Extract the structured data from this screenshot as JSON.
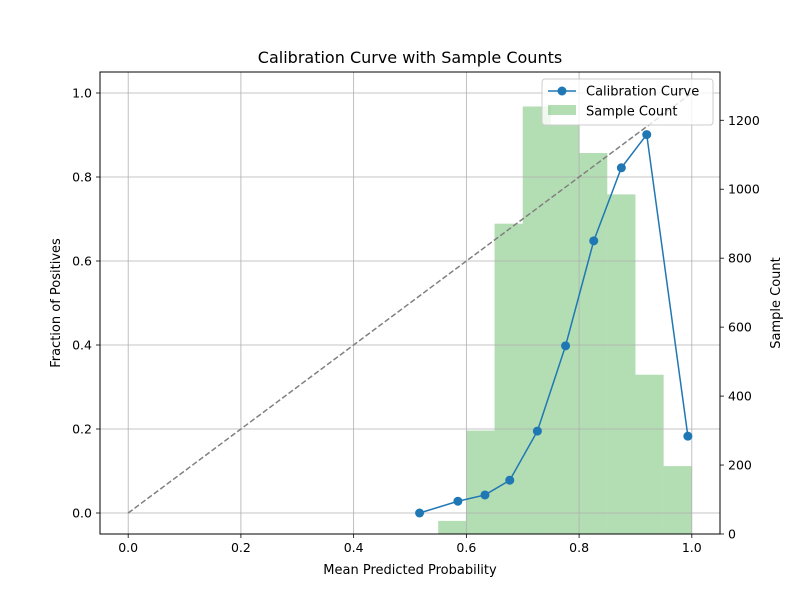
{
  "chart_data": {
    "type": "line",
    "title": "Calibration Curve with Sample Counts",
    "xlabel": "Mean Predicted Probability",
    "ylabel": "Fraction of Positives",
    "y2label": "Sample Count",
    "xlim": [
      -0.05,
      1.05
    ],
    "ylim": [
      -0.05,
      1.05
    ],
    "y2lim": [
      0,
      1340
    ],
    "xticks": [
      0.0,
      0.2,
      0.4,
      0.6,
      0.8,
      1.0
    ],
    "xtick_labels": [
      "0.0",
      "0.2",
      "0.4",
      "0.6",
      "0.8",
      "1.0"
    ],
    "yticks": [
      0.0,
      0.2,
      0.4,
      0.6,
      0.8,
      1.0
    ],
    "ytick_labels": [
      "0.0",
      "0.2",
      "0.4",
      "0.6",
      "0.8",
      "1.0"
    ],
    "y2ticks": [
      0,
      200,
      400,
      600,
      800,
      1000,
      1200
    ],
    "y2tick_labels": [
      "0",
      "200",
      "400",
      "600",
      "800",
      "1000",
      "1200"
    ],
    "grid": true,
    "legend_position": "top-right",
    "reference_line": {
      "x": [
        0.0,
        1.0
      ],
      "y": [
        0.0,
        1.0
      ],
      "style": "dashed",
      "color": "#808080"
    },
    "calibration": {
      "name": "Calibration Curve",
      "color": "#1f77b4",
      "x": [
        0.517,
        0.585,
        0.633,
        0.677,
        0.726,
        0.776,
        0.826,
        0.875,
        0.92,
        0.993
      ],
      "y": [
        0.0,
        0.028,
        0.043,
        0.078,
        0.195,
        0.398,
        0.648,
        0.822,
        0.901,
        0.183
      ]
    },
    "histogram": {
      "name": "Sample Count",
      "color": "#2ca02c",
      "alpha": 0.36,
      "bin_edges": [
        0.55,
        0.6,
        0.65,
        0.7,
        0.75,
        0.8,
        0.85,
        0.9,
        0.95,
        1.0
      ],
      "counts": [
        38,
        300,
        900,
        1240,
        1185,
        1105,
        985,
        462,
        197
      ]
    }
  }
}
